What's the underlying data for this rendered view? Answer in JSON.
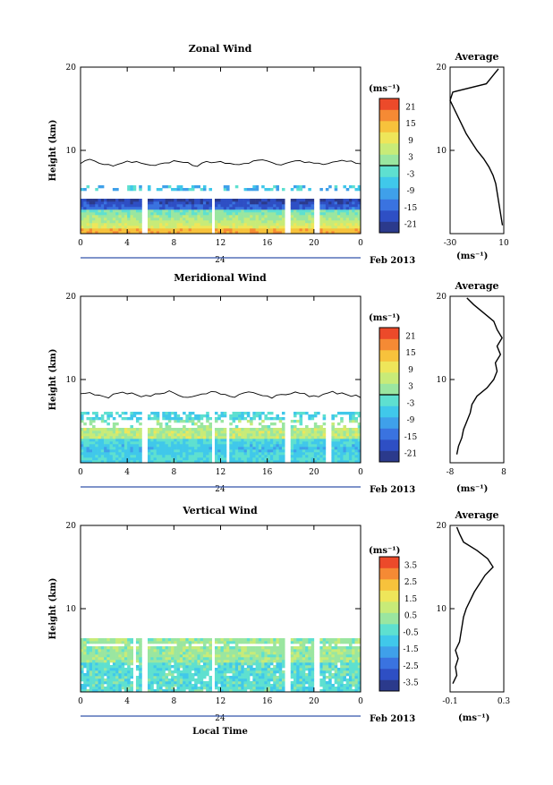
{
  "colors": {
    "scale": [
      "#2b3a8c",
      "#2e4fc4",
      "#3a73e0",
      "#3fa0ea",
      "#40c8ea",
      "#5ee0d0",
      "#9ae6a0",
      "#c8eb78",
      "#eee65a",
      "#f7c23c",
      "#f58a34",
      "#ec4a2a"
    ],
    "nan": "#ffffff",
    "line": "#000000"
  },
  "chart_data": [
    {
      "id": "zonal",
      "type": "heatmap",
      "title": "Zonal Wind",
      "ylabel": "Height (km)",
      "xlabel": "",
      "x_ticks": [
        "0",
        "4",
        "8",
        "12",
        "16",
        "20",
        "0"
      ],
      "x_range": [
        0,
        24
      ],
      "y_ticks": [
        "20",
        "10"
      ],
      "y_range": [
        0,
        20
      ],
      "date_label": "24",
      "month_label": "Feb 2013",
      "gaps_hours": [
        5.5,
        11.4,
        17.8,
        20.2
      ],
      "zero_contour_km": 8.5,
      "colorbar": {
        "unit": "(ms⁻¹)",
        "ticks": [
          "21",
          "15",
          "9",
          "3",
          "-3",
          "-9",
          "-15",
          "-21"
        ],
        "range": [
          -24,
          24
        ]
      },
      "profile": {
        "title": "Average",
        "unit": "(ms⁻¹)",
        "x_ticks": [
          "-30",
          "10"
        ],
        "x_range": [
          -30,
          10
        ],
        "y_ticks": [
          "20",
          "10"
        ],
        "heights": [
          1,
          2,
          3,
          4,
          5,
          6,
          7,
          8,
          9,
          10,
          11,
          12,
          13,
          14,
          15,
          16,
          17,
          18,
          19,
          19.8
        ],
        "values": [
          9,
          8,
          7,
          6,
          5,
          4,
          2,
          -1,
          -5,
          -10,
          -14,
          -18,
          -21,
          -24,
          -27,
          -30,
          -28,
          -3,
          2,
          6
        ]
      }
    },
    {
      "id": "meridional",
      "type": "heatmap",
      "title": "Meridional Wind",
      "ylabel": "Height (km)",
      "xlabel": "",
      "x_ticks": [
        "0",
        "4",
        "8",
        "12",
        "16",
        "20",
        "0"
      ],
      "x_range": [
        0,
        24
      ],
      "y_ticks": [
        "20",
        "10"
      ],
      "y_range": [
        0,
        20
      ],
      "date_label": "24",
      "month_label": "Feb 2013",
      "gaps_hours": [
        5.5,
        11.4,
        12.6,
        17.8,
        21.3
      ],
      "zero_contour_km": 8.2,
      "colorbar": {
        "unit": "(ms⁻¹)",
        "ticks": [
          "21",
          "15",
          "9",
          "3",
          "-3",
          "-9",
          "-15",
          "-21"
        ],
        "range": [
          -24,
          24
        ]
      },
      "profile": {
        "title": "Average",
        "unit": "(ms⁻¹)",
        "x_ticks": [
          "-8",
          "8"
        ],
        "x_range": [
          -8,
          8
        ],
        "y_ticks": [
          "20",
          "10"
        ],
        "heights": [
          1,
          2,
          3,
          4,
          5,
          6,
          7,
          8,
          9,
          10,
          11,
          12,
          13,
          14,
          15,
          16,
          17,
          18,
          19,
          19.8
        ],
        "values": [
          -6,
          -5.5,
          -4.5,
          -4,
          -3,
          -2,
          -1.5,
          0,
          3,
          5,
          6,
          5.5,
          7,
          6,
          7.5,
          6,
          5,
          2,
          -1,
          -3
        ]
      }
    },
    {
      "id": "vertical",
      "type": "heatmap",
      "title": "Vertical Wind",
      "ylabel": "Height (km)",
      "xlabel": "Local Time",
      "x_ticks": [
        "0",
        "4",
        "8",
        "12",
        "16",
        "20",
        "0"
      ],
      "x_range": [
        0,
        24
      ],
      "y_ticks": [
        "20",
        "10"
      ],
      "y_range": [
        0,
        20
      ],
      "date_label": "24",
      "month_label": "Feb 2013",
      "gaps_hours": [
        4.6,
        5.5,
        11.4,
        17.8,
        20.2
      ],
      "zero_contour_km": null,
      "colorbar": {
        "unit": "(ms⁻¹)",
        "ticks": [
          "3.5",
          "2.5",
          "1.5",
          "0.5",
          "-0.5",
          "-1.5",
          "-2.5",
          "-3.5"
        ],
        "range": [
          -4,
          4
        ]
      },
      "profile": {
        "title": "Average",
        "unit": "(ms⁻¹)",
        "x_ticks": [
          "-0.1",
          "0.3"
        ],
        "x_range": [
          -0.1,
          0.3
        ],
        "y_ticks": [
          "20",
          "10"
        ],
        "heights": [
          1,
          2,
          3,
          4,
          5,
          6,
          7,
          8,
          9,
          10,
          11,
          12,
          13,
          14,
          15,
          16,
          17,
          18,
          19,
          19.8
        ],
        "values": [
          -0.08,
          -0.05,
          -0.06,
          -0.04,
          -0.06,
          -0.03,
          -0.02,
          -0.01,
          0.0,
          0.02,
          0.05,
          0.08,
          0.12,
          0.16,
          0.22,
          0.18,
          0.1,
          0.0,
          -0.03,
          -0.05
        ]
      }
    }
  ]
}
